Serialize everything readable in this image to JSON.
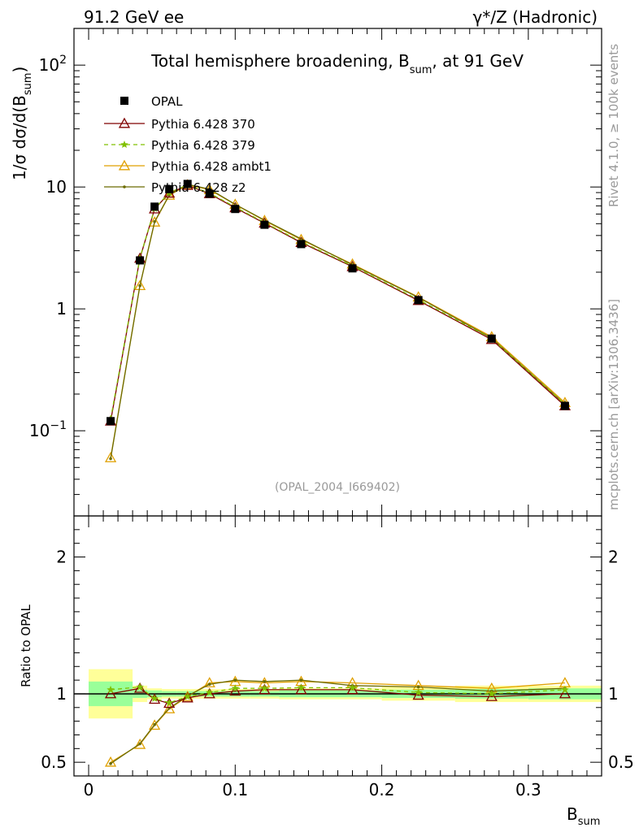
{
  "header": {
    "left": "91.2 GeV ee",
    "right": "γ*/Z (Hadronic)"
  },
  "side": {
    "rivet": "Rivet 4.1.0, ≥ 100k events",
    "mcplots": "mcplots.cern.ch [arXiv:1306.3436]"
  },
  "chart_data": {
    "type": "line",
    "title": "Total hemisphere broadening, B_sum, at 91 GeV",
    "title_main": "Total hemisphere broadening, B",
    "title_sub": "sum",
    "title_tail": ", at 91 GeV",
    "watermark": "(OPAL_2004_I669402)",
    "xlabel_main": "B",
    "xlabel_sub": "sum",
    "ylabel_main": "1/σ  dσ/d(B",
    "ylabel_sub": "sum",
    "ylabel_tail": ")",
    "ratio_ylabel": "Ratio to OPAL",
    "xlim": [
      -0.01,
      0.35
    ],
    "ylim": [
      0.02,
      200
    ],
    "ratio_ylim": [
      0.4,
      2.3
    ],
    "x_ticks": [
      "0",
      "0.1",
      "0.2",
      "0.3"
    ],
    "x_tick_values": [
      0,
      0.1,
      0.2,
      0.3
    ],
    "y_tick_labels": [
      "10^-1",
      "1",
      "10",
      "10^2"
    ],
    "ratio_ticks": [
      "0.5",
      "1",
      "2"
    ],
    "ratio_tick_values": [
      0.5,
      1,
      2
    ],
    "x": [
      0.015,
      0.035,
      0.045,
      0.055,
      0.0675,
      0.0825,
      0.1,
      0.12,
      0.145,
      0.18,
      0.225,
      0.275,
      0.325
    ],
    "bin_edges": [
      0.0,
      0.03,
      0.04,
      0.05,
      0.06,
      0.075,
      0.09,
      0.11,
      0.13,
      0.16,
      0.2,
      0.25,
      0.3,
      0.35
    ],
    "data": {
      "name": "OPAL",
      "values": [
        0.12,
        2.5,
        6.9,
        9.6,
        10.6,
        8.8,
        6.6,
        4.9,
        3.4,
        2.15,
        1.18,
        0.57,
        0.16
      ],
      "band_inner": [
        0.09,
        0.03,
        0.025,
        0.02,
        0.02,
        0.02,
        0.02,
        0.02,
        0.025,
        0.025,
        0.03,
        0.035,
        0.04
      ],
      "band_outer": [
        0.18,
        0.06,
        0.04,
        0.035,
        0.035,
        0.035,
        0.035,
        0.035,
        0.04,
        0.04,
        0.05,
        0.06,
        0.06
      ]
    },
    "series": [
      {
        "name": "Pythia 6.428 370",
        "color": "#800000",
        "dash": "",
        "marker": "triangle-open",
        "values": [
          0.12,
          2.6,
          6.6,
          8.9,
          10.3,
          8.8,
          6.75,
          5.05,
          3.5,
          2.22,
          1.17,
          0.56,
          0.16
        ],
        "ratio": [
          1.0,
          1.04,
          0.96,
          0.93,
          0.97,
          1.0,
          1.02,
          1.03,
          1.03,
          1.03,
          0.99,
          0.98,
          1.0
        ]
      },
      {
        "name": "Pythia 6.428 379",
        "color": "#80c000",
        "dash": "5,4",
        "marker": "star",
        "values": [
          0.125,
          2.62,
          6.65,
          9.0,
          10.4,
          8.9,
          6.85,
          5.1,
          3.55,
          2.25,
          1.19,
          0.57,
          0.165
        ],
        "ratio": [
          1.03,
          1.05,
          0.965,
          0.935,
          0.98,
          1.01,
          1.04,
          1.04,
          1.045,
          1.045,
          1.01,
          1.0,
          1.03
        ]
      },
      {
        "name": "Pythia 6.428 ambt1",
        "color": "#e0a000",
        "dash": "",
        "marker": "triangle-open",
        "values": [
          0.06,
          1.55,
          5.15,
          8.55,
          10.4,
          9.5,
          7.2,
          5.3,
          3.7,
          2.33,
          1.25,
          0.59,
          0.17
        ],
        "ratio": [
          0.5,
          0.63,
          0.77,
          0.89,
          0.98,
          1.08,
          1.09,
          1.08,
          1.09,
          1.08,
          1.06,
          1.04,
          1.08
        ]
      },
      {
        "name": "Pythia 6.428 z2",
        "color": "#6b6b00",
        "dash": "",
        "marker": "dot",
        "values": [
          0.059,
          1.55,
          5.2,
          8.6,
          10.5,
          9.6,
          7.2,
          5.35,
          3.75,
          2.3,
          1.24,
          0.575,
          0.165
        ],
        "ratio": [
          0.49,
          0.635,
          0.775,
          0.895,
          0.985,
          1.07,
          1.1,
          1.09,
          1.1,
          1.06,
          1.05,
          1.02,
          1.04
        ]
      }
    ]
  }
}
